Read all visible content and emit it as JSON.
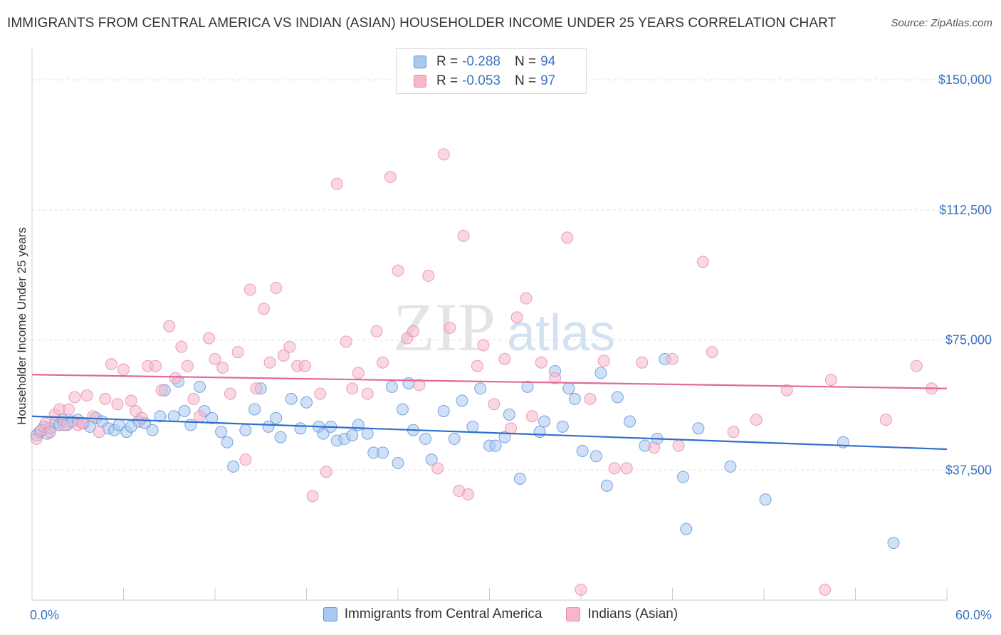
{
  "header": {
    "title": "IMMIGRANTS FROM CENTRAL AMERICA VS INDIAN (ASIAN) HOUSEHOLDER INCOME UNDER 25 YEARS CORRELATION CHART",
    "source": "Source: ZipAtlas.com"
  },
  "watermark": {
    "zip": "ZIP",
    "atlas": "atlas"
  },
  "legend": {
    "rows": [
      {
        "r_label": "R =",
        "r_value": "-0.288",
        "n_label": "N =",
        "n_value": "94",
        "color": "#a9c8f0"
      },
      {
        "r_label": "R =",
        "r_value": "-0.053",
        "n_label": "N =",
        "n_value": "97",
        "color": "#f6b7cb"
      }
    ]
  },
  "chart_data": {
    "type": "scatter",
    "title": "IMMIGRANTS FROM CENTRAL AMERICA VS INDIAN (ASIAN) HOUSEHOLDER INCOME UNDER 25 YEARS CORRELATION CHART",
    "xlabel": "",
    "ylabel": "Householder Income Under 25 years",
    "xlim": [
      0,
      60
    ],
    "ylim": [
      0,
      157000
    ],
    "x_tick_labels": [
      "0.0%",
      "60.0%"
    ],
    "y_ticks": [
      37500,
      75000,
      112500,
      150000
    ],
    "y_tick_labels": [
      "$37,500",
      "$75,000",
      "$112,500",
      "$150,000"
    ],
    "grid": true,
    "legend_position": "bottom-center",
    "series": [
      {
        "name": "Immigrants from Central America",
        "color": "#a9c8f0",
        "edge": "#5b8fd6",
        "trend_color": "#2f6fcc",
        "trend": [
          [
            0,
            53000
          ],
          [
            60,
            43500
          ]
        ],
        "points": [
          [
            0.3,
            47500
          ],
          [
            0.5,
            48500
          ],
          [
            0.8,
            50000
          ],
          [
            1.0,
            48000
          ],
          [
            1.2,
            49500
          ],
          [
            1.5,
            51000
          ],
          [
            1.8,
            50500
          ],
          [
            2.0,
            52000
          ],
          [
            2.3,
            50500
          ],
          [
            2.6,
            51500
          ],
          [
            3.0,
            52000
          ],
          [
            3.4,
            51000
          ],
          [
            3.8,
            50000
          ],
          [
            4.2,
            52500
          ],
          [
            4.6,
            51500
          ],
          [
            5.0,
            49500
          ],
          [
            5.4,
            49000
          ],
          [
            5.7,
            50500
          ],
          [
            6.2,
            48500
          ],
          [
            6.5,
            50000
          ],
          [
            7.0,
            51500
          ],
          [
            7.4,
            51000
          ],
          [
            7.9,
            49000
          ],
          [
            8.4,
            53000
          ],
          [
            8.7,
            60500
          ],
          [
            9.3,
            53000
          ],
          [
            9.6,
            63000
          ],
          [
            10.0,
            54500
          ],
          [
            10.4,
            50500
          ],
          [
            11.0,
            61500
          ],
          [
            11.3,
            54500
          ],
          [
            11.8,
            52500
          ],
          [
            12.4,
            48500
          ],
          [
            12.8,
            45500
          ],
          [
            13.2,
            38500
          ],
          [
            14.0,
            49000
          ],
          [
            14.6,
            55000
          ],
          [
            15.0,
            61000
          ],
          [
            15.5,
            50000
          ],
          [
            16.0,
            52500
          ],
          [
            16.3,
            47000
          ],
          [
            17.0,
            58000
          ],
          [
            17.6,
            49500
          ],
          [
            18.0,
            57000
          ],
          [
            18.8,
            50000
          ],
          [
            19.1,
            48000
          ],
          [
            19.6,
            50000
          ],
          [
            20.0,
            46000
          ],
          [
            20.5,
            46500
          ],
          [
            21.0,
            47500
          ],
          [
            21.4,
            50500
          ],
          [
            22.0,
            48000
          ],
          [
            22.4,
            42500
          ],
          [
            23.0,
            42500
          ],
          [
            23.6,
            61500
          ],
          [
            24.0,
            39500
          ],
          [
            24.3,
            55000
          ],
          [
            24.7,
            62500
          ],
          [
            25.0,
            49000
          ],
          [
            25.8,
            46500
          ],
          [
            26.2,
            40500
          ],
          [
            27.0,
            54500
          ],
          [
            27.7,
            46500
          ],
          [
            28.2,
            57500
          ],
          [
            28.9,
            50000
          ],
          [
            29.4,
            61000
          ],
          [
            30.0,
            44500
          ],
          [
            30.4,
            44500
          ],
          [
            31.0,
            47000
          ],
          [
            31.3,
            53500
          ],
          [
            32.0,
            35000
          ],
          [
            32.5,
            61500
          ],
          [
            33.3,
            48500
          ],
          [
            33.6,
            51500
          ],
          [
            34.3,
            66000
          ],
          [
            34.8,
            50000
          ],
          [
            35.2,
            61000
          ],
          [
            35.6,
            58000
          ],
          [
            36.1,
            43000
          ],
          [
            37.0,
            41500
          ],
          [
            37.3,
            65500
          ],
          [
            37.7,
            33000
          ],
          [
            38.4,
            58500
          ],
          [
            39.2,
            51500
          ],
          [
            40.2,
            44500
          ],
          [
            41.0,
            46500
          ],
          [
            41.5,
            69500
          ],
          [
            42.7,
            35500
          ],
          [
            42.9,
            20500
          ],
          [
            43.7,
            49500
          ],
          [
            45.8,
            38500
          ],
          [
            48.1,
            29000
          ],
          [
            53.2,
            45500
          ],
          [
            56.5,
            16500
          ]
        ]
      },
      {
        "name": "Indians (Asian)",
        "color": "#f6b7cb",
        "edge": "#e48aa9",
        "trend_color": "#e3679a",
        "trend": [
          [
            0,
            65000
          ],
          [
            60,
            61000
          ]
        ],
        "points": [
          [
            0.3,
            46500
          ],
          [
            0.6,
            49000
          ],
          [
            0.9,
            51000
          ],
          [
            1.2,
            48500
          ],
          [
            1.5,
            53500
          ],
          [
            1.8,
            55000
          ],
          [
            2.1,
            50500
          ],
          [
            2.4,
            55000
          ],
          [
            2.8,
            58500
          ],
          [
            3.0,
            50500
          ],
          [
            3.3,
            51000
          ],
          [
            3.6,
            59000
          ],
          [
            4.0,
            53000
          ],
          [
            4.4,
            48500
          ],
          [
            4.8,
            58000
          ],
          [
            5.2,
            68000
          ],
          [
            5.6,
            56500
          ],
          [
            6.0,
            66500
          ],
          [
            6.5,
            57500
          ],
          [
            6.8,
            54500
          ],
          [
            7.2,
            52500
          ],
          [
            7.6,
            67500
          ],
          [
            8.1,
            67500
          ],
          [
            8.5,
            60500
          ],
          [
            9.0,
            79000
          ],
          [
            9.4,
            64000
          ],
          [
            9.8,
            73000
          ],
          [
            10.2,
            67500
          ],
          [
            10.6,
            58000
          ],
          [
            11.0,
            53000
          ],
          [
            11.6,
            75500
          ],
          [
            12.0,
            69500
          ],
          [
            12.5,
            67000
          ],
          [
            13.0,
            59500
          ],
          [
            13.5,
            71500
          ],
          [
            14.0,
            40500
          ],
          [
            14.3,
            89500
          ],
          [
            14.7,
            61000
          ],
          [
            15.2,
            84000
          ],
          [
            15.6,
            68500
          ],
          [
            16.0,
            90000
          ],
          [
            16.5,
            70500
          ],
          [
            16.9,
            73000
          ],
          [
            17.4,
            67500
          ],
          [
            17.9,
            67500
          ],
          [
            18.4,
            30000
          ],
          [
            18.9,
            59500
          ],
          [
            19.3,
            37000
          ],
          [
            20.0,
            120000
          ],
          [
            20.6,
            74500
          ],
          [
            21.0,
            61000
          ],
          [
            21.4,
            65500
          ],
          [
            22.0,
            59500
          ],
          [
            22.6,
            77500
          ],
          [
            23.0,
            68500
          ],
          [
            23.5,
            122000
          ],
          [
            24.0,
            95000
          ],
          [
            24.6,
            75500
          ],
          [
            25.0,
            77500
          ],
          [
            25.4,
            62000
          ],
          [
            26.0,
            93500
          ],
          [
            26.6,
            38000
          ],
          [
            27.0,
            128500
          ],
          [
            27.4,
            78500
          ],
          [
            28.0,
            31500
          ],
          [
            28.3,
            105000
          ],
          [
            28.6,
            30500
          ],
          [
            29.2,
            67500
          ],
          [
            29.6,
            73500
          ],
          [
            30.3,
            56500
          ],
          [
            31.0,
            69500
          ],
          [
            31.4,
            49500
          ],
          [
            31.8,
            81500
          ],
          [
            32.4,
            87000
          ],
          [
            32.8,
            53000
          ],
          [
            33.4,
            68500
          ],
          [
            34.3,
            64000
          ],
          [
            35.1,
            104500
          ],
          [
            36.0,
            3000
          ],
          [
            36.6,
            58000
          ],
          [
            37.5,
            69000
          ],
          [
            38.2,
            38000
          ],
          [
            39.0,
            38000
          ],
          [
            40.0,
            68500
          ],
          [
            40.8,
            44000
          ],
          [
            42.0,
            69500
          ],
          [
            42.4,
            44500
          ],
          [
            44.0,
            97500
          ],
          [
            44.6,
            71500
          ],
          [
            46.0,
            48500
          ],
          [
            47.5,
            52000
          ],
          [
            49.5,
            60500
          ],
          [
            52.0,
            3000
          ],
          [
            52.4,
            63500
          ],
          [
            56.0,
            52000
          ],
          [
            58.0,
            67500
          ],
          [
            59.0,
            61000
          ]
        ]
      }
    ]
  }
}
